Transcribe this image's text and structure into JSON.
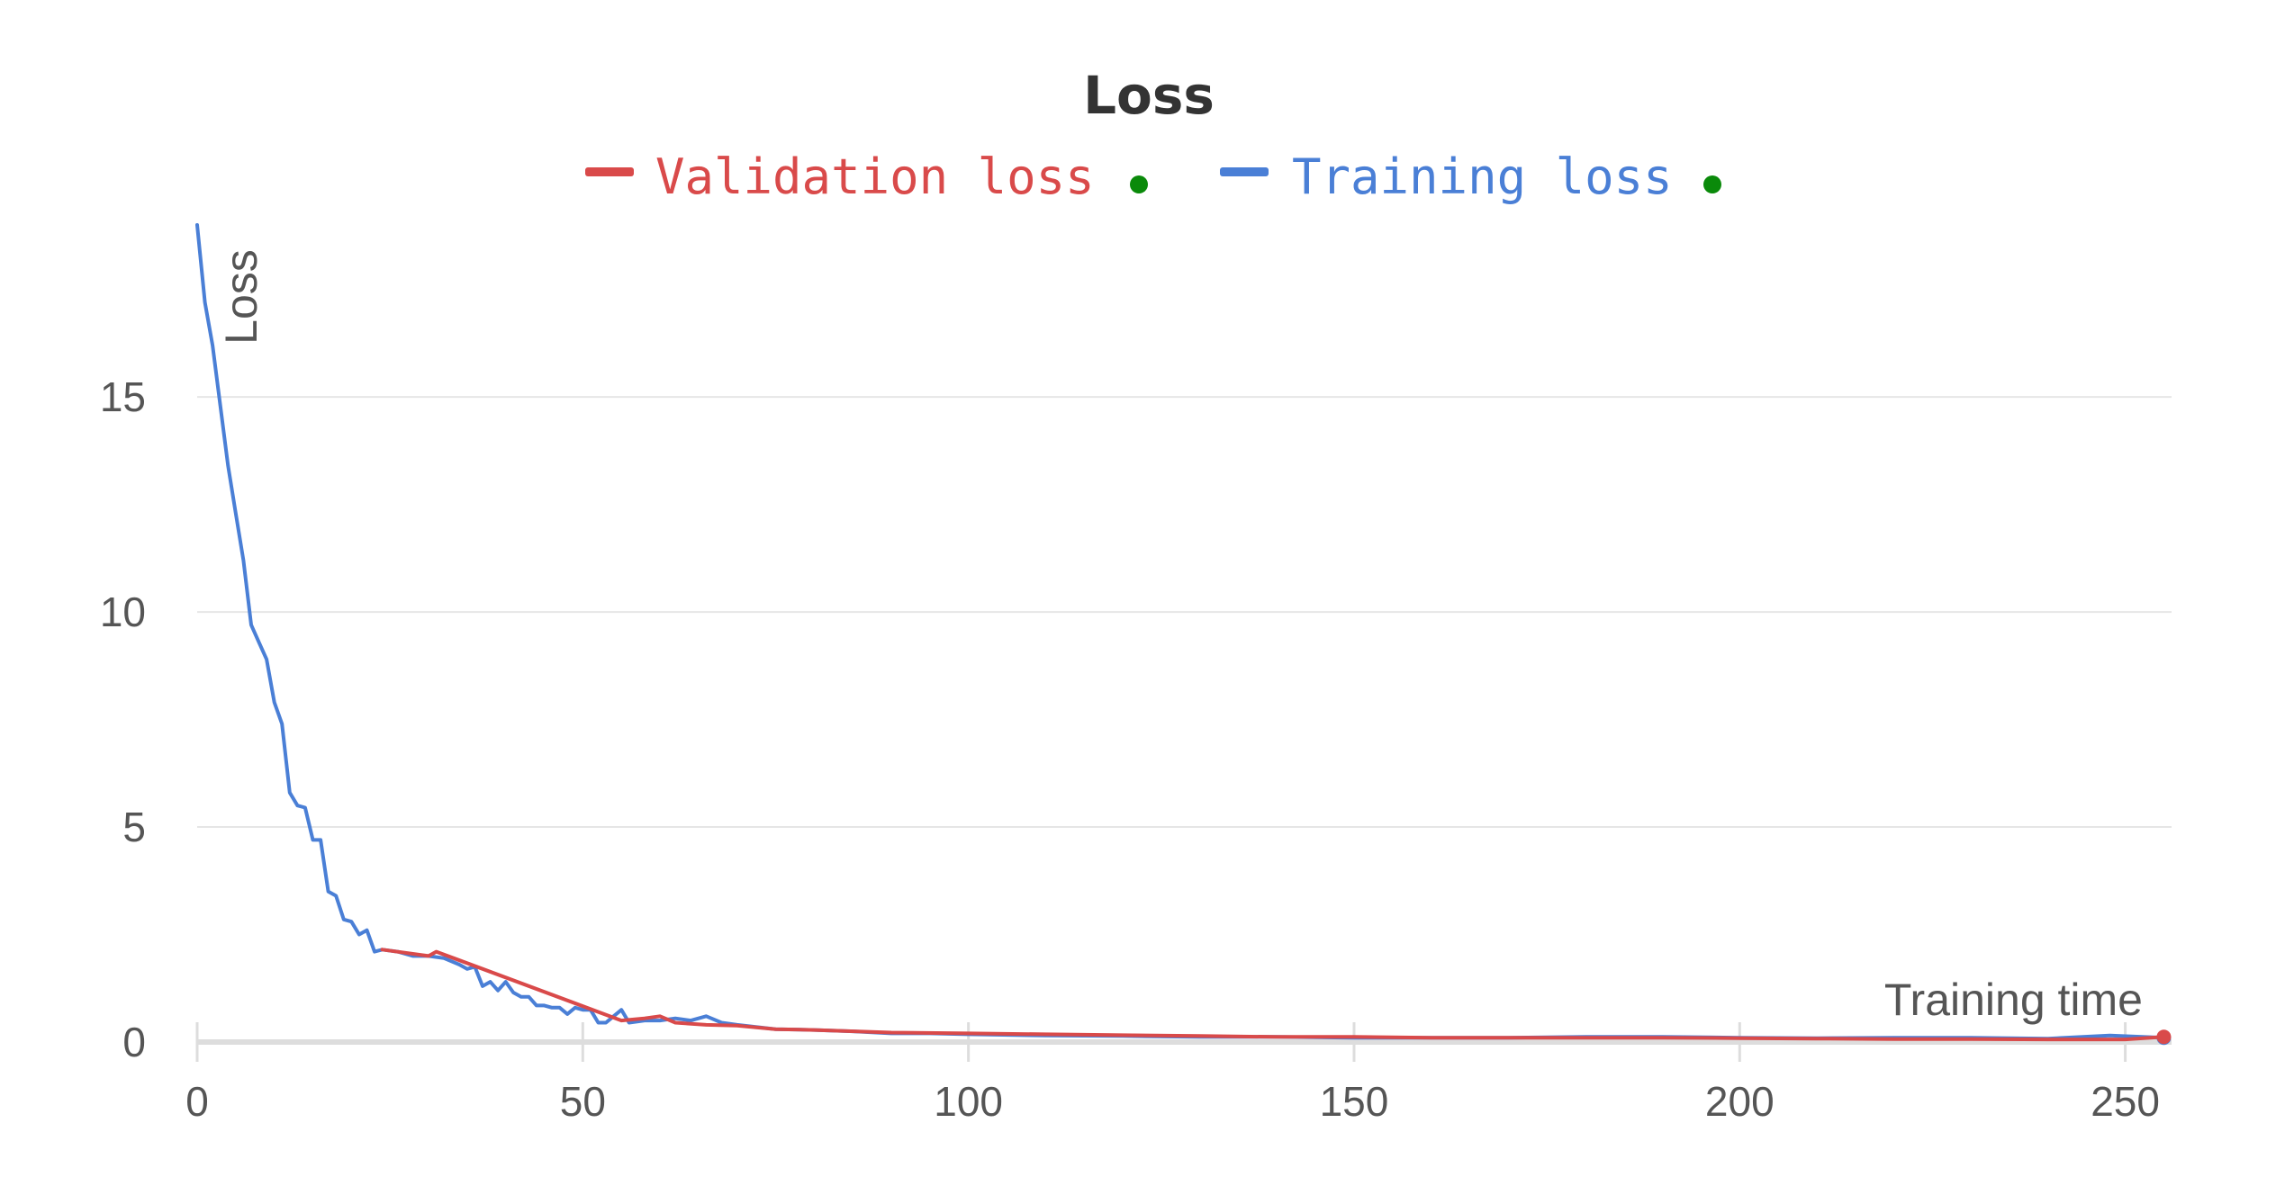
{
  "chart_data": {
    "type": "line",
    "title": "Loss",
    "xlabel": "Training time",
    "ylabel": "Loss",
    "xlim": [
      0,
      256
    ],
    "ylim": [
      0,
      19
    ],
    "xticks": [
      0,
      50,
      100,
      150,
      200,
      250
    ],
    "yticks": [
      0,
      5,
      10,
      15
    ],
    "grid": true,
    "legend": "top-center",
    "series": [
      {
        "name": "Validation loss",
        "color": "#d94a4a",
        "status_color": "#0a8a0a",
        "x": [
          24,
          30,
          31,
          55,
          58,
          60,
          62,
          66,
          70,
          75,
          80,
          90,
          100,
          110,
          120,
          130,
          140,
          150,
          160,
          170,
          180,
          190,
          200,
          210,
          220,
          230,
          240,
          250,
          255
        ],
        "y": [
          2.15,
          2.0,
          2.1,
          0.5,
          0.55,
          0.6,
          0.45,
          0.4,
          0.38,
          0.3,
          0.28,
          0.22,
          0.2,
          0.18,
          0.16,
          0.14,
          0.12,
          0.12,
          0.1,
          0.1,
          0.1,
          0.1,
          0.09,
          0.08,
          0.07,
          0.07,
          0.06,
          0.06,
          0.12
        ]
      },
      {
        "name": "Training loss",
        "color": "#4a7fd6",
        "status_color": "#0a8a0a",
        "x": [
          0,
          1,
          2,
          3,
          4,
          5,
          6,
          7,
          8,
          9,
          10,
          11,
          12,
          13,
          14,
          15,
          16,
          17,
          18,
          19,
          20,
          21,
          22,
          23,
          24,
          26,
          28,
          30,
          32,
          34,
          35,
          36,
          37,
          38,
          39,
          40,
          41,
          42,
          43,
          44,
          45,
          46,
          47,
          48,
          49,
          50,
          51,
          52,
          53,
          54,
          55,
          56,
          58,
          60,
          62,
          64,
          66,
          68,
          70,
          75,
          80,
          85,
          90,
          95,
          100,
          110,
          120,
          130,
          140,
          150,
          160,
          170,
          180,
          190,
          200,
          210,
          220,
          230,
          240,
          248,
          255
        ],
        "y": [
          19.0,
          17.2,
          16.2,
          14.8,
          13.4,
          12.3,
          11.2,
          9.7,
          9.3,
          8.9,
          7.9,
          7.4,
          5.8,
          5.5,
          5.45,
          4.7,
          4.7,
          3.5,
          3.4,
          2.85,
          2.8,
          2.5,
          2.6,
          2.1,
          2.15,
          2.1,
          2.0,
          2.0,
          1.95,
          1.8,
          1.7,
          1.75,
          1.3,
          1.4,
          1.2,
          1.4,
          1.15,
          1.05,
          1.05,
          0.85,
          0.85,
          0.8,
          0.8,
          0.65,
          0.8,
          0.75,
          0.75,
          0.45,
          0.45,
          0.6,
          0.75,
          0.45,
          0.5,
          0.5,
          0.55,
          0.5,
          0.6,
          0.45,
          0.4,
          0.3,
          0.28,
          0.25,
          0.2,
          0.2,
          0.18,
          0.15,
          0.14,
          0.12,
          0.12,
          0.1,
          0.1,
          0.1,
          0.12,
          0.12,
          0.1,
          0.09,
          0.1,
          0.1,
          0.08,
          0.15,
          0.1
        ]
      }
    ]
  }
}
